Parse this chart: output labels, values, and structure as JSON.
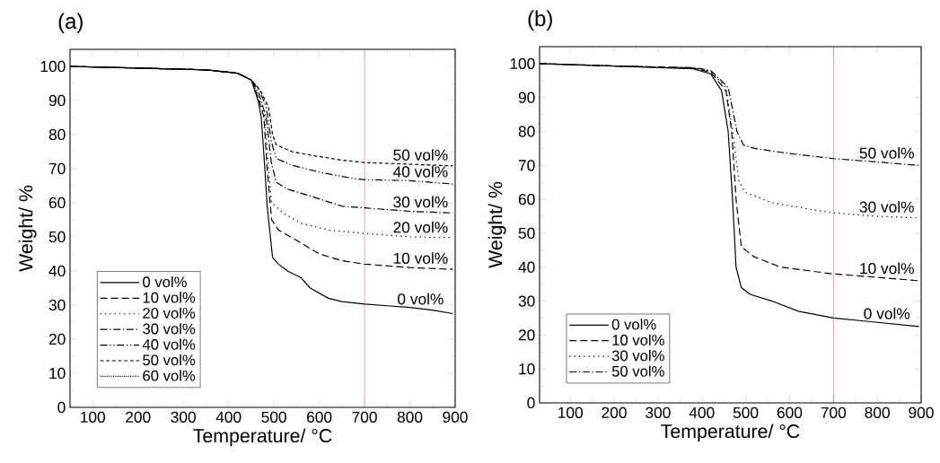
{
  "chart_data": [
    {
      "type": "line",
      "title": "(a)",
      "xlabel": "Temperature/ °C",
      "ylabel": "Weight/ %",
      "xlim": [
        50,
        900
      ],
      "ylim": [
        0,
        105
      ],
      "xticks": [
        100,
        200,
        300,
        400,
        500,
        600,
        700,
        800,
        900
      ],
      "yticks": [
        0,
        10,
        20,
        30,
        40,
        50,
        60,
        70,
        80,
        90,
        100
      ],
      "legend": "bottom left",
      "ref_lines": [
        {
          "axis": "x",
          "value": 700,
          "color": "#b04060"
        }
      ],
      "series": [
        {
          "name": "0 vol%",
          "color": "#000000",
          "line_style": "solid",
          "x": [
            50,
            200,
            350,
            420,
            450,
            465,
            472,
            480,
            485,
            497,
            510,
            530,
            560,
            580,
            620,
            650,
            700,
            750,
            800,
            850,
            895
          ],
          "values": [
            100,
            99.5,
            99,
            98,
            96,
            90,
            85,
            70,
            59,
            44,
            42,
            40,
            38,
            35,
            32,
            31,
            30.3,
            29.8,
            29.3,
            28.5,
            27.5
          ]
        },
        {
          "name": "10 vol%",
          "color": "#000000",
          "line_style": "dashed",
          "x": [
            50,
            200,
            350,
            420,
            450,
            465,
            478,
            485,
            495,
            510,
            550,
            600,
            650,
            700,
            800,
            895
          ],
          "values": [
            100,
            99.5,
            99,
            98,
            96,
            91,
            85,
            70,
            55,
            52,
            49,
            45,
            43,
            42,
            41,
            40.5
          ]
        },
        {
          "name": "20 vol%",
          "color": "#000000",
          "line_style": "dotted",
          "x": [
            50,
            200,
            350,
            420,
            450,
            466,
            480,
            488,
            495,
            520,
            560,
            620,
            700,
            800,
            895
          ],
          "values": [
            100,
            99.5,
            99,
            98,
            96,
            91,
            85,
            70,
            60,
            57,
            54,
            52,
            51,
            50,
            49.8
          ]
        },
        {
          "name": "30 vol%",
          "color": "#000000",
          "line_style": "dashdot",
          "x": [
            50,
            200,
            350,
            420,
            450,
            467,
            483,
            494,
            505,
            530,
            580,
            650,
            700,
            800,
            895
          ],
          "values": [
            100,
            99.5,
            99,
            98,
            96,
            92,
            85,
            72,
            66,
            64,
            62,
            59,
            58.5,
            57.5,
            57
          ]
        },
        {
          "name": "40 vol%",
          "color": "#000000",
          "line_style": "dashdotdot",
          "x": [
            50,
            200,
            350,
            420,
            450,
            468,
            483,
            494,
            505,
            540,
            600,
            680,
            700,
            800,
            895
          ],
          "values": [
            100,
            99.5,
            99,
            98,
            96,
            93,
            88,
            78,
            73,
            71,
            69,
            67,
            66.8,
            66.5,
            65.5
          ]
        },
        {
          "name": "50 vol%",
          "color": "#000000",
          "line_style": "densely dashed",
          "x": [
            50,
            200,
            350,
            420,
            450,
            470,
            488,
            497,
            505,
            540,
            580,
            650,
            700,
            800,
            895
          ],
          "values": [
            100,
            99.5,
            99,
            98,
            96,
            93,
            88,
            80,
            77,
            75,
            74,
            72.5,
            71.8,
            71.3,
            70.8
          ]
        },
        {
          "name": "60 vol%",
          "color": "#000000",
          "line_style": "densely dotted"
        }
      ],
      "annotations": [
        "50 vol%",
        "40 vol%",
        "30 vol%",
        "20 vol%",
        "10 vol%",
        "0 vol%"
      ]
    },
    {
      "type": "line",
      "title": "(b)",
      "xlabel": "Temperature/ °C",
      "ylabel": "Weight/ %",
      "xlim": [
        30,
        900
      ],
      "ylim": [
        0,
        105
      ],
      "xticks": [
        100,
        200,
        300,
        400,
        500,
        600,
        700,
        800,
        900
      ],
      "yticks": [
        0,
        10,
        20,
        30,
        40,
        50,
        60,
        70,
        80,
        90,
        100
      ],
      "legend": "bottom left",
      "ref_lines": [
        {
          "axis": "x",
          "value": 700,
          "color": "#b04060"
        }
      ],
      "series": [
        {
          "name": "0 vol%",
          "color": "#000000",
          "line_style": "solid",
          "x": [
            30,
            200,
            380,
            420,
            445,
            460,
            470,
            478,
            490,
            510,
            560,
            620,
            700,
            780,
            895
          ],
          "values": [
            100,
            99.3,
            98.5,
            97,
            92,
            80,
            60,
            40,
            34,
            32,
            30,
            27,
            25,
            24,
            22.5
          ]
        },
        {
          "name": "10 vol%",
          "color": "#000000",
          "line_style": "dashed",
          "x": [
            30,
            200,
            380,
            420,
            455,
            468,
            478,
            490,
            520,
            580,
            700,
            800,
            895
          ],
          "values": [
            100,
            99.3,
            98.7,
            97.5,
            92,
            80,
            60,
            46,
            43,
            40,
            38,
            37,
            36
          ]
        },
        {
          "name": "30 vol%",
          "color": "#000000",
          "line_style": "dotted",
          "x": [
            30,
            200,
            380,
            420,
            455,
            470,
            485,
            500,
            560,
            650,
            700,
            800,
            895
          ],
          "values": [
            100,
            99.3,
            98.7,
            97.7,
            93,
            80,
            65,
            62,
            59,
            57,
            56,
            55,
            54.5
          ]
        },
        {
          "name": "50 vol%",
          "color": "#000000",
          "line_style": "dashdot",
          "x": [
            30,
            200,
            380,
            420,
            460,
            480,
            495,
            520,
            600,
            700,
            800,
            895
          ],
          "values": [
            100,
            99.3,
            98.8,
            98,
            93,
            80,
            76,
            75,
            73.5,
            72,
            71,
            70
          ]
        }
      ],
      "annotations": [
        "50 vol%",
        "30 vol%",
        "10 vol%",
        "0 vol%"
      ]
    }
  ]
}
